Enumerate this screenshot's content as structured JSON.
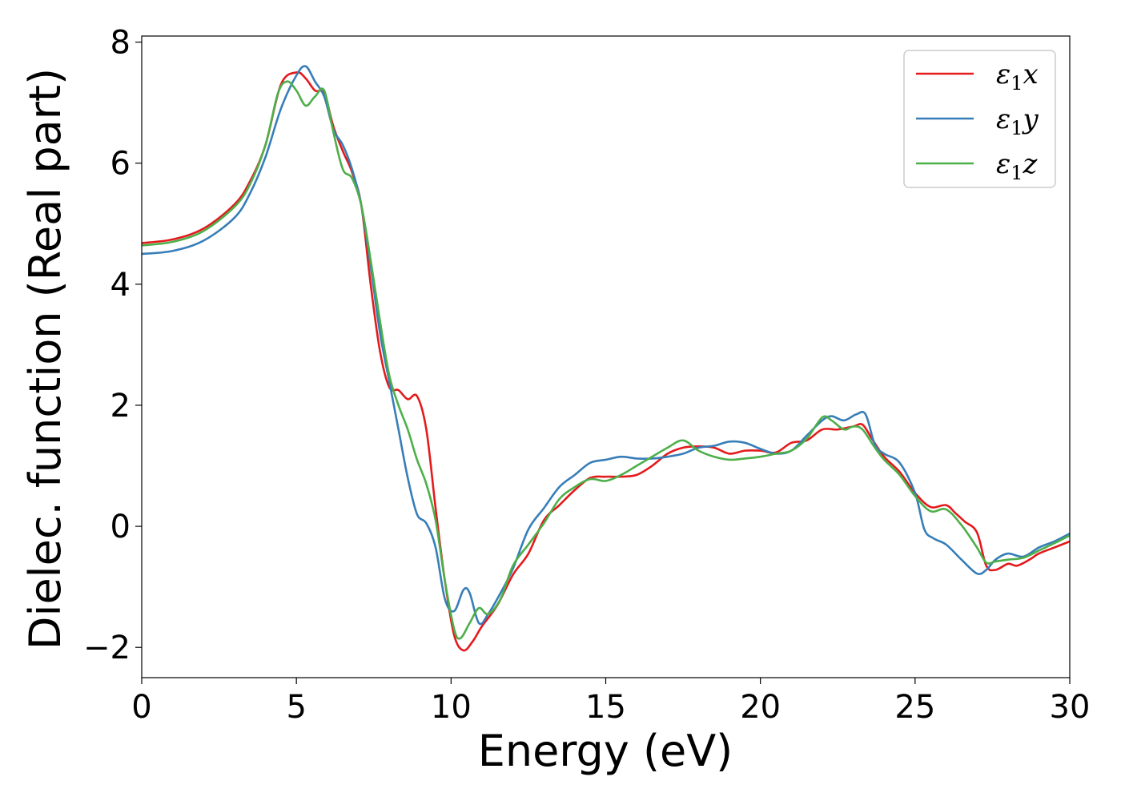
{
  "chart_data": {
    "type": "line",
    "title": "",
    "xlabel": "Energy (eV)",
    "ylabel": "Dielec. function (Real part)",
    "xlim": [
      0,
      30
    ],
    "ylim": [
      -2.5,
      8.1
    ],
    "xticks": [
      0,
      5,
      10,
      15,
      20,
      25,
      30
    ],
    "xtick_labels": [
      "0",
      "5",
      "10",
      "15",
      "20",
      "25",
      "30"
    ],
    "yticks": [
      -2,
      0,
      2,
      4,
      6,
      8
    ],
    "ytick_labels": [
      "−2",
      "0",
      "2",
      "4",
      "6",
      "8"
    ],
    "grid": false,
    "legend_position": "top-right",
    "series": [
      {
        "name": "ε1x",
        "legend_base": "ε",
        "legend_sub": "1",
        "legend_tail": "x",
        "color": "#e41a1c",
        "points": [
          [
            0,
            4.68
          ],
          [
            1,
            4.74
          ],
          [
            2,
            4.92
          ],
          [
            3,
            5.32
          ],
          [
            3.5,
            5.7
          ],
          [
            4,
            6.3
          ],
          [
            4.5,
            7.3
          ],
          [
            5,
            7.5
          ],
          [
            5.3,
            7.4
          ],
          [
            5.6,
            7.2
          ],
          [
            5.9,
            7.15
          ],
          [
            6.2,
            6.6
          ],
          [
            6.5,
            6.2
          ],
          [
            6.8,
            5.85
          ],
          [
            7.1,
            5.3
          ],
          [
            7.4,
            4.0
          ],
          [
            7.7,
            2.9
          ],
          [
            8.0,
            2.3
          ],
          [
            8.3,
            2.25
          ],
          [
            8.6,
            2.1
          ],
          [
            8.9,
            2.15
          ],
          [
            9.2,
            1.6
          ],
          [
            9.5,
            0.3
          ],
          [
            9.8,
            -0.9
          ],
          [
            10.1,
            -1.8
          ],
          [
            10.4,
            -2.05
          ],
          [
            10.7,
            -1.9
          ],
          [
            11,
            -1.65
          ],
          [
            11.5,
            -1.3
          ],
          [
            12,
            -0.8
          ],
          [
            12.5,
            -0.45
          ],
          [
            13,
            0.1
          ],
          [
            13.5,
            0.35
          ],
          [
            14,
            0.6
          ],
          [
            14.5,
            0.8
          ],
          [
            15,
            0.82
          ],
          [
            15.5,
            0.82
          ],
          [
            16,
            0.85
          ],
          [
            16.5,
            1.0
          ],
          [
            17,
            1.2
          ],
          [
            17.5,
            1.3
          ],
          [
            18,
            1.32
          ],
          [
            18.5,
            1.3
          ],
          [
            19,
            1.2
          ],
          [
            19.5,
            1.25
          ],
          [
            20,
            1.25
          ],
          [
            20.5,
            1.22
          ],
          [
            21,
            1.38
          ],
          [
            21.5,
            1.42
          ],
          [
            22,
            1.6
          ],
          [
            22.5,
            1.6
          ],
          [
            23,
            1.65
          ],
          [
            23.3,
            1.68
          ],
          [
            23.6,
            1.45
          ],
          [
            24,
            1.15
          ],
          [
            24.5,
            0.9
          ],
          [
            25,
            0.55
          ],
          [
            25.5,
            0.32
          ],
          [
            26,
            0.35
          ],
          [
            26.3,
            0.22
          ],
          [
            26.6,
            0.08
          ],
          [
            27,
            -0.1
          ],
          [
            27.3,
            -0.65
          ],
          [
            27.6,
            -0.72
          ],
          [
            28,
            -0.62
          ],
          [
            28.3,
            -0.65
          ],
          [
            28.7,
            -0.55
          ],
          [
            29,
            -0.45
          ],
          [
            29.5,
            -0.35
          ],
          [
            30,
            -0.25
          ]
        ]
      },
      {
        "name": "ε1y",
        "legend_base": "ε",
        "legend_sub": "1",
        "legend_tail": "y",
        "color": "#377eb8",
        "points": [
          [
            0,
            4.5
          ],
          [
            1,
            4.55
          ],
          [
            2,
            4.72
          ],
          [
            3,
            5.1
          ],
          [
            3.5,
            5.5
          ],
          [
            4,
            6.1
          ],
          [
            4.5,
            6.9
          ],
          [
            5,
            7.45
          ],
          [
            5.3,
            7.6
          ],
          [
            5.6,
            7.35
          ],
          [
            5.9,
            7.1
          ],
          [
            6.2,
            6.55
          ],
          [
            6.5,
            6.3
          ],
          [
            6.8,
            5.9
          ],
          [
            7.1,
            5.3
          ],
          [
            7.4,
            4.3
          ],
          [
            7.7,
            3.2
          ],
          [
            8,
            2.4
          ],
          [
            8.3,
            1.6
          ],
          [
            8.6,
            0.8
          ],
          [
            8.9,
            0.2
          ],
          [
            9.2,
            0.05
          ],
          [
            9.5,
            -0.35
          ],
          [
            9.8,
            -1.2
          ],
          [
            10.1,
            -1.4
          ],
          [
            10.4,
            -1.05
          ],
          [
            10.6,
            -1.1
          ],
          [
            10.9,
            -1.6
          ],
          [
            11.2,
            -1.45
          ],
          [
            11.6,
            -1.1
          ],
          [
            12,
            -0.7
          ],
          [
            12.5,
            -0.05
          ],
          [
            13,
            0.3
          ],
          [
            13.5,
            0.65
          ],
          [
            14,
            0.85
          ],
          [
            14.5,
            1.05
          ],
          [
            15,
            1.1
          ],
          [
            15.5,
            1.15
          ],
          [
            16,
            1.12
          ],
          [
            16.5,
            1.12
          ],
          [
            17,
            1.15
          ],
          [
            17.5,
            1.2
          ],
          [
            18,
            1.3
          ],
          [
            18.5,
            1.33
          ],
          [
            19,
            1.4
          ],
          [
            19.5,
            1.38
          ],
          [
            20,
            1.28
          ],
          [
            20.5,
            1.2
          ],
          [
            21,
            1.25
          ],
          [
            21.5,
            1.5
          ],
          [
            22,
            1.75
          ],
          [
            22.3,
            1.82
          ],
          [
            22.7,
            1.75
          ],
          [
            23.1,
            1.85
          ],
          [
            23.4,
            1.85
          ],
          [
            23.7,
            1.35
          ],
          [
            24,
            1.2
          ],
          [
            24.5,
            1.05
          ],
          [
            25,
            0.55
          ],
          [
            25.3,
            -0.05
          ],
          [
            25.6,
            -0.2
          ],
          [
            26,
            -0.3
          ],
          [
            26.5,
            -0.55
          ],
          [
            27,
            -0.78
          ],
          [
            27.3,
            -0.72
          ],
          [
            27.6,
            -0.55
          ],
          [
            28,
            -0.45
          ],
          [
            28.5,
            -0.5
          ],
          [
            29,
            -0.35
          ],
          [
            29.5,
            -0.25
          ],
          [
            30,
            -0.12
          ]
        ]
      },
      {
        "name": "ε1z",
        "legend_base": "ε",
        "legend_sub": "1",
        "legend_tail": "z",
        "color": "#4daf4a",
        "points": [
          [
            0,
            4.64
          ],
          [
            1,
            4.7
          ],
          [
            2,
            4.88
          ],
          [
            3,
            5.28
          ],
          [
            3.5,
            5.65
          ],
          [
            4,
            6.3
          ],
          [
            4.4,
            7.15
          ],
          [
            4.7,
            7.35
          ],
          [
            5,
            7.2
          ],
          [
            5.3,
            6.95
          ],
          [
            5.6,
            7.1
          ],
          [
            5.9,
            7.2
          ],
          [
            6.2,
            6.5
          ],
          [
            6.5,
            5.9
          ],
          [
            6.8,
            5.75
          ],
          [
            7.1,
            5.3
          ],
          [
            7.4,
            4.4
          ],
          [
            7.7,
            3.4
          ],
          [
            8,
            2.5
          ],
          [
            8.3,
            2.0
          ],
          [
            8.6,
            1.6
          ],
          [
            8.9,
            1.1
          ],
          [
            9.2,
            0.7
          ],
          [
            9.5,
            0.1
          ],
          [
            9.8,
            -0.9
          ],
          [
            10.1,
            -1.7
          ],
          [
            10.3,
            -1.85
          ],
          [
            10.6,
            -1.6
          ],
          [
            10.9,
            -1.35
          ],
          [
            11.2,
            -1.45
          ],
          [
            11.6,
            -1.2
          ],
          [
            12,
            -0.65
          ],
          [
            12.5,
            -0.3
          ],
          [
            13,
            0.05
          ],
          [
            13.5,
            0.45
          ],
          [
            14,
            0.65
          ],
          [
            14.5,
            0.78
          ],
          [
            15,
            0.75
          ],
          [
            15.5,
            0.85
          ],
          [
            16,
            1.0
          ],
          [
            16.5,
            1.15
          ],
          [
            17,
            1.3
          ],
          [
            17.5,
            1.42
          ],
          [
            18,
            1.25
          ],
          [
            18.5,
            1.15
          ],
          [
            19,
            1.1
          ],
          [
            19.5,
            1.12
          ],
          [
            20,
            1.15
          ],
          [
            20.5,
            1.2
          ],
          [
            21,
            1.25
          ],
          [
            21.5,
            1.45
          ],
          [
            22,
            1.8
          ],
          [
            22.3,
            1.75
          ],
          [
            22.7,
            1.6
          ],
          [
            23,
            1.65
          ],
          [
            23.3,
            1.6
          ],
          [
            23.7,
            1.3
          ],
          [
            24,
            1.1
          ],
          [
            24.5,
            0.85
          ],
          [
            25,
            0.5
          ],
          [
            25.5,
            0.25
          ],
          [
            26,
            0.28
          ],
          [
            26.5,
            0.02
          ],
          [
            27,
            -0.35
          ],
          [
            27.3,
            -0.6
          ],
          [
            27.6,
            -0.58
          ],
          [
            28,
            -0.55
          ],
          [
            28.5,
            -0.52
          ],
          [
            29,
            -0.4
          ],
          [
            29.5,
            -0.28
          ],
          [
            30,
            -0.15
          ]
        ]
      }
    ]
  }
}
